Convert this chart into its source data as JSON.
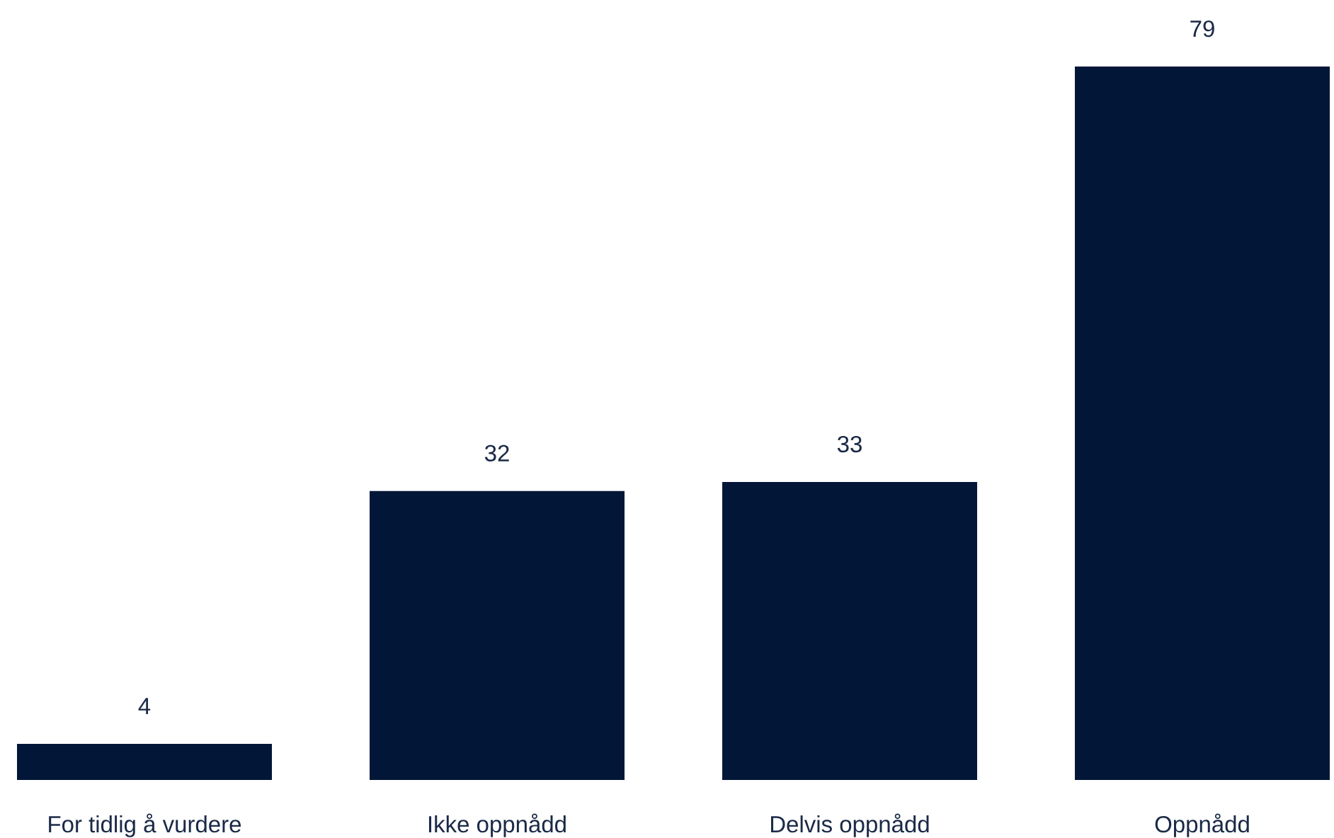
{
  "chart_data": {
    "type": "bar",
    "categories": [
      "For tidlig å vurdere",
      "Ikke oppnådd",
      "Delvis oppnådd",
      "Oppnådd"
    ],
    "values": [
      4,
      32,
      33,
      79
    ],
    "color": "#021638",
    "data_labels": true
  }
}
